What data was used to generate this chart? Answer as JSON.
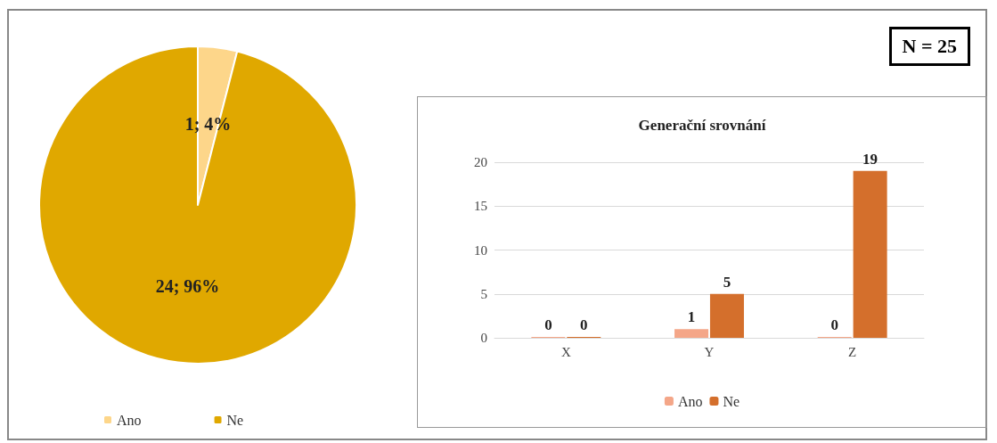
{
  "chart_data": [
    {
      "type": "pie",
      "categories": [
        "Ano",
        "Ne"
      ],
      "values": [
        1,
        24
      ],
      "colors": [
        "#fdd68a",
        "#e0a800"
      ],
      "value_labels": [
        "1; 4%",
        "24; 96%"
      ],
      "legend": "bottom",
      "annotations": [
        "N = 25"
      ]
    },
    {
      "type": "bar",
      "title": "Generační srovnání",
      "categories": [
        "X",
        "Y",
        "Z"
      ],
      "series": [
        {
          "name": "Ano",
          "color": "#f4a688",
          "values": [
            0,
            1,
            0
          ]
        },
        {
          "name": "Ne",
          "color": "#d46f2c",
          "values": [
            0,
            5,
            19
          ]
        }
      ],
      "ylim": [
        0,
        20
      ],
      "yticks": [
        0,
        5,
        10,
        15,
        20
      ],
      "grid": "y",
      "data_labels": true,
      "legend": "bottom"
    }
  ]
}
